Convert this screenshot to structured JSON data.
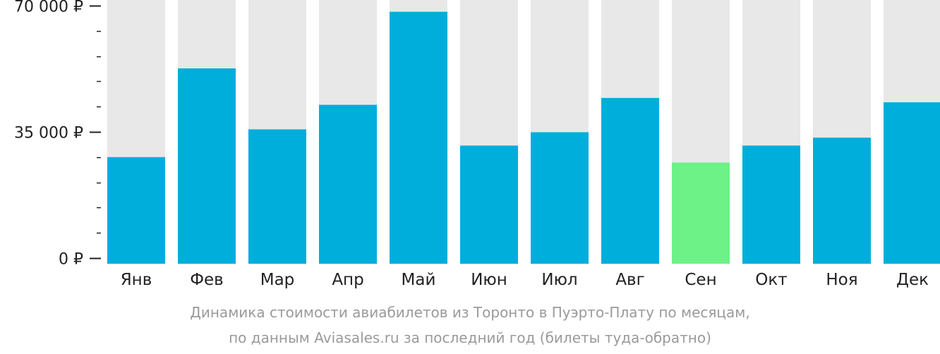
{
  "chart_data": {
    "type": "bar",
    "categories": [
      "Янв",
      "Фев",
      "Мар",
      "Апр",
      "Май",
      "Июн",
      "Июл",
      "Авг",
      "Сен",
      "Окт",
      "Ноя",
      "Дек"
    ],
    "values": [
      28000,
      52600,
      35700,
      42500,
      68300,
      31200,
      34900,
      44400,
      26500,
      31200,
      33400,
      43200
    ],
    "ylim": [
      0,
      70000
    ],
    "y_ticks": [
      {
        "value": 0,
        "label": "0 ₽"
      },
      {
        "value": 35000,
        "label": "35 000 ₽"
      },
      {
        "value": 70000,
        "label": "70 000 ₽"
      }
    ],
    "minor_tick_step": 7000,
    "highlight_index": 8,
    "grid": false,
    "legend": "none",
    "colors": {
      "bar": "#00AEDB",
      "highlight": "#6CF287",
      "track": "#E8E8E8",
      "axis": "#222222"
    }
  },
  "caption": {
    "line1": "Динамика стоимости авиабилетов из Торонто в Пуэрто-Плату по месяцам,",
    "line2": "по данным Aviasales.ru за последний год (билеты туда-обратно)"
  }
}
